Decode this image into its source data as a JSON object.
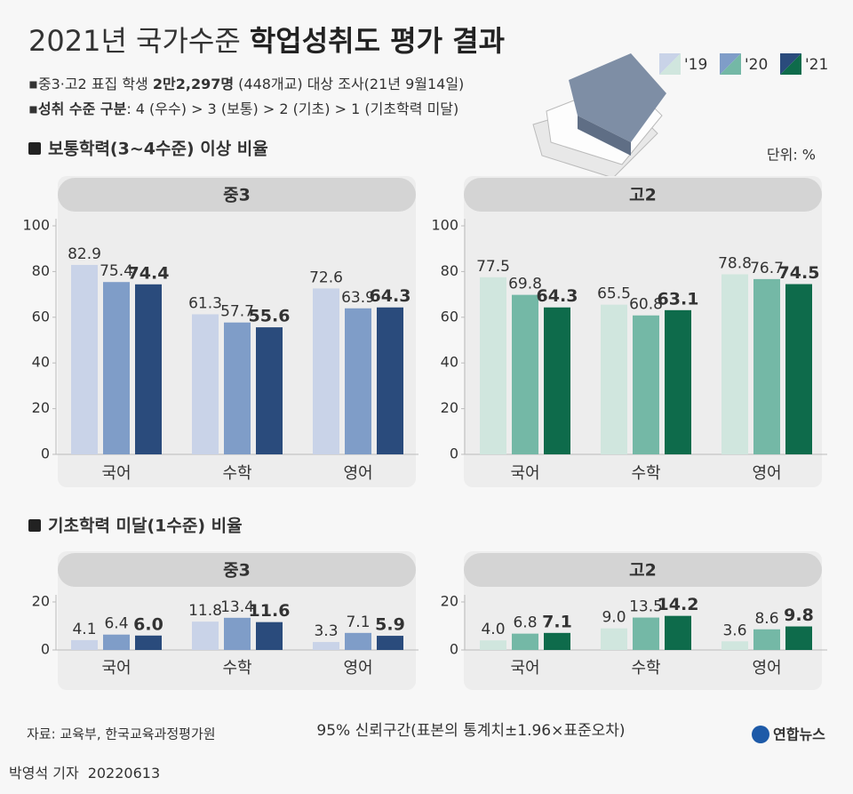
{
  "header": {
    "title_light": "2021년 국가수준",
    "title_bold": "학업성취도 평가 결과",
    "notes": [
      [
        "중3·고2 표집 학생 ",
        "2만2,297명",
        " (448개교) 대상 조사(21년 9월14일)"
      ],
      [
        "성취 수준 구분",
        ": 4 (우수) > 3 (보통) > 2 (기초) > 1 (기초학력 미달)"
      ]
    ],
    "unit": "단위: %"
  },
  "sections": [
    "보통학력(3~4수준) 이상 비율",
    "기초학력 미달(1수준) 비율"
  ],
  "chart_data": [
    {
      "type": "bar",
      "title": "중3",
      "categories": [
        "국어",
        "수학",
        "영어"
      ],
      "ylim": [
        0,
        100
      ],
      "yticks": [
        0,
        20,
        40,
        60,
        80,
        100
      ],
      "series": [
        {
          "name": "'19",
          "color": "#c9d3e8",
          "values": [
            82.9,
            61.3,
            72.6
          ]
        },
        {
          "name": "'20",
          "color": "#7f9dc8",
          "values": [
            75.4,
            57.7,
            63.9
          ]
        },
        {
          "name": "'21",
          "color": "#2a4b7c",
          "values": [
            74.4,
            55.6,
            64.3
          ]
        }
      ]
    },
    {
      "type": "bar",
      "title": "고2",
      "categories": [
        "국어",
        "수학",
        "영어"
      ],
      "ylim": [
        0,
        100
      ],
      "yticks": [
        0,
        20,
        40,
        60,
        80,
        100
      ],
      "series": [
        {
          "name": "'19",
          "color": "#d0e6de",
          "values": [
            77.5,
            65.5,
            78.8
          ]
        },
        {
          "name": "'20",
          "color": "#74b8a6",
          "values": [
            69.8,
            60.8,
            76.7
          ]
        },
        {
          "name": "'21",
          "color": "#0e6b4b",
          "values": [
            64.3,
            63.1,
            74.5
          ]
        }
      ]
    },
    {
      "type": "bar",
      "title": "중3",
      "categories": [
        "국어",
        "수학",
        "영어"
      ],
      "ylim": [
        0,
        20
      ],
      "yticks": [
        0,
        20
      ],
      "series": [
        {
          "name": "'19",
          "color": "#c9d3e8",
          "values": [
            4.1,
            11.8,
            3.3
          ]
        },
        {
          "name": "'20",
          "color": "#7f9dc8",
          "values": [
            6.4,
            13.4,
            7.1
          ]
        },
        {
          "name": "'21",
          "color": "#2a4b7c",
          "values": [
            6.0,
            11.6,
            5.9
          ],
          "value_labels": [
            "6.0",
            "11.6",
            "5.9"
          ]
        }
      ]
    },
    {
      "type": "bar",
      "title": "고2",
      "categories": [
        "국어",
        "수학",
        "영어"
      ],
      "ylim": [
        0,
        20
      ],
      "yticks": [
        0,
        20
      ],
      "series": [
        {
          "name": "'19",
          "color": "#d0e6de",
          "values": [
            4.0,
            9.0,
            3.6
          ],
          "value_labels": [
            "4.0",
            "9.0",
            "3.6"
          ]
        },
        {
          "name": "'20",
          "color": "#74b8a6",
          "values": [
            6.8,
            13.5,
            8.6
          ]
        },
        {
          "name": "'21",
          "color": "#0e6b4b",
          "values": [
            7.1,
            14.2,
            9.8
          ]
        }
      ]
    }
  ],
  "footer": {
    "source": "자료: 교육부, 한국교육과정평가원",
    "note": "95% 신뢰구간(표본의 통계치±1.96×표준오차)",
    "logo": "연합뉴스",
    "reporter": "박영석 기자",
    "date": "20220613"
  }
}
